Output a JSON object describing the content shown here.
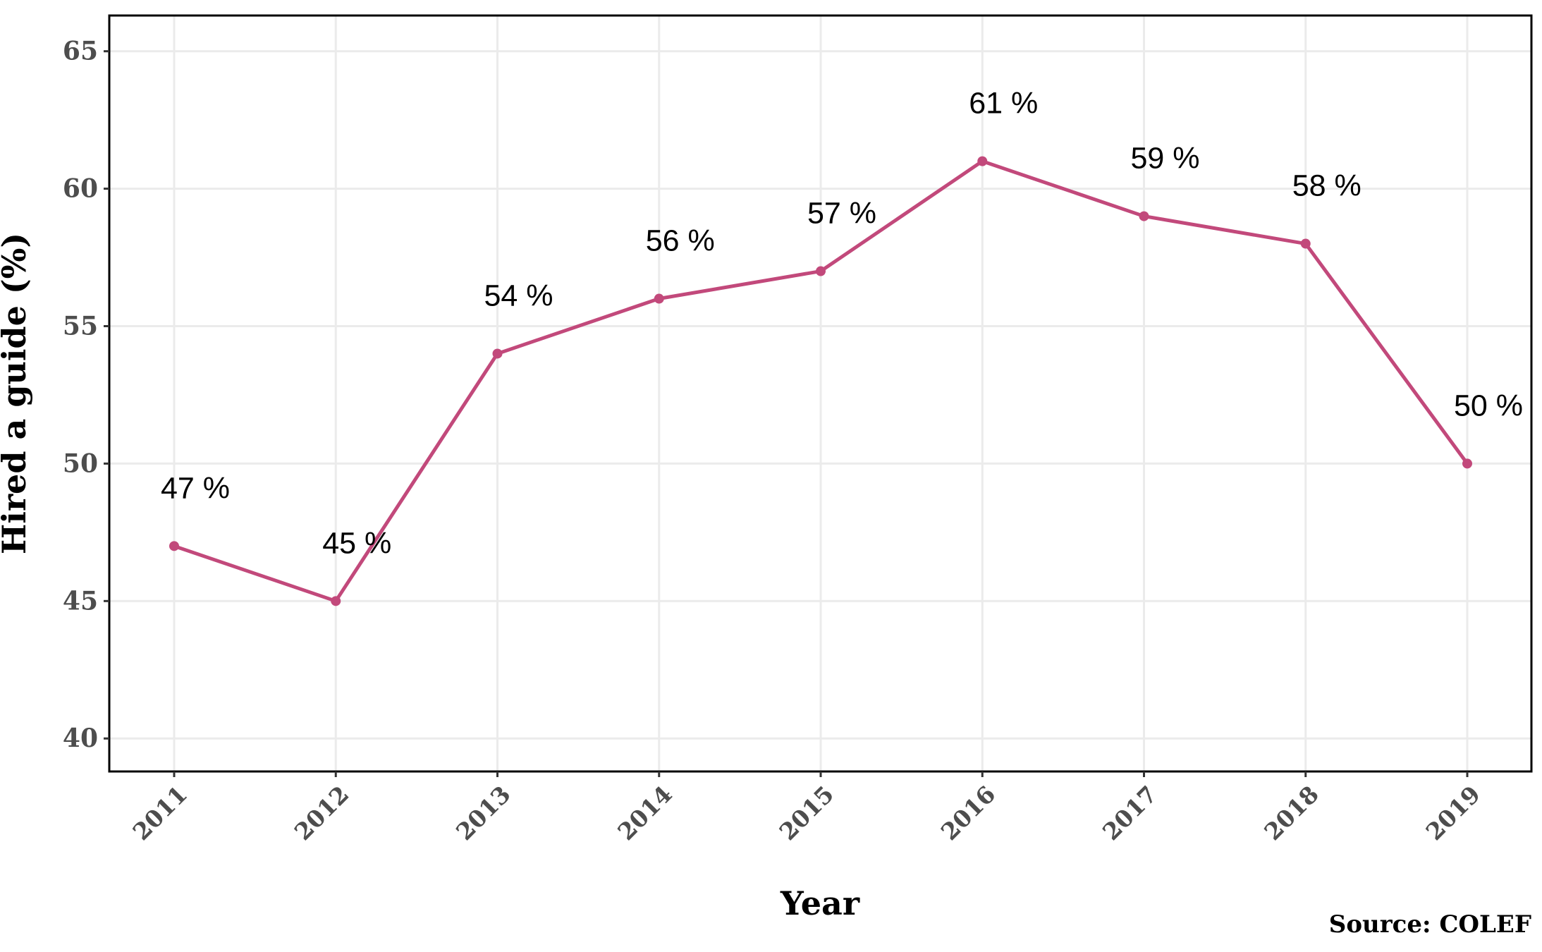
{
  "chart_data": {
    "type": "line",
    "x": [
      "2011",
      "2012",
      "2013",
      "2014",
      "2015",
      "2016",
      "2017",
      "2018",
      "2019"
    ],
    "series": [
      {
        "values": [
          47,
          45,
          54,
          56,
          57,
          61,
          59,
          58,
          50
        ],
        "color": "#C2497B"
      }
    ],
    "data_labels": [
      "47  %",
      "45  %",
      "54  %",
      "56  %",
      "57  %",
      "61  %",
      "59  %",
      "58  %",
      "50  %"
    ],
    "xlabel": "Year",
    "ylabel": "Hired a guide (%)",
    "yticks": [
      40,
      45,
      50,
      55,
      60,
      65
    ],
    "ylim": [
      38.8,
      66.3
    ],
    "grid": true,
    "caption": "Source: COLEF"
  }
}
